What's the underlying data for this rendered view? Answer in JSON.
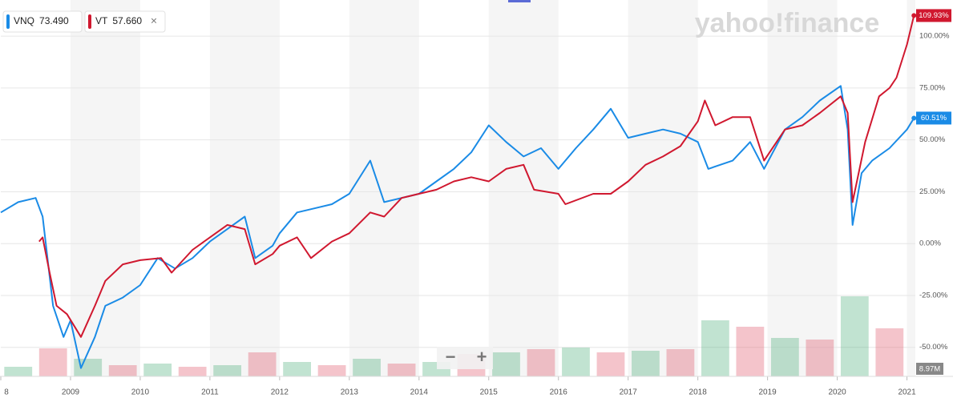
{
  "chart_data": {
    "type": "line",
    "logo": "yahoo!finance",
    "zoom_out": "−",
    "zoom_in": "+",
    "close": "×",
    "xlim": [
      2008.0,
      2021.12
    ],
    "xticks": [
      {
        "value": 2008,
        "label": "8"
      },
      2009,
      2010,
      2011,
      2012,
      2013,
      2014,
      2015,
      2016,
      2017,
      2018,
      2019,
      2020,
      2021
    ],
    "ylim": [
      -64,
      115.5
    ],
    "yticks": [
      {
        "value": -50,
        "label": "-50.00%"
      },
      {
        "value": -25,
        "label": "-25.00%"
      },
      {
        "value": 0,
        "label": "0.00%"
      },
      {
        "value": 25,
        "label": "25.00%"
      },
      {
        "value": 50,
        "label": "50.00%"
      },
      {
        "value": 75,
        "label": "75.00%"
      },
      {
        "value": 100,
        "label": "100.00%"
      }
    ],
    "grid": true,
    "series": [
      {
        "name": "VNQ",
        "color": "#1a8be6",
        "quote": {
          "value": 73.49,
          "label": "73.490"
        },
        "x": [
          2008.0,
          2008.25,
          2008.5,
          2008.6,
          2008.75,
          2008.9,
          2009.0,
          2009.15,
          2009.35,
          2009.5,
          2009.75,
          2010.0,
          2010.25,
          2010.5,
          2010.75,
          2011.0,
          2011.25,
          2011.5,
          2011.65,
          2011.9,
          2012.0,
          2012.25,
          2012.5,
          2012.75,
          2013.0,
          2013.3,
          2013.5,
          2013.75,
          2014.0,
          2014.25,
          2014.5,
          2014.75,
          2015.0,
          2015.25,
          2015.5,
          2015.75,
          2016.0,
          2016.25,
          2016.5,
          2016.75,
          2017.0,
          2017.25,
          2017.5,
          2017.75,
          2018.0,
          2018.15,
          2018.5,
          2018.75,
          2018.95,
          2019.25,
          2019.5,
          2019.75,
          2020.05,
          2020.15,
          2020.22,
          2020.35,
          2020.5,
          2020.75,
          2021.0,
          2021.1
        ],
        "values": [
          15,
          20,
          22,
          13,
          -30,
          -45,
          -37,
          -60,
          -45,
          -30,
          -26,
          -20,
          -7,
          -12,
          -7,
          1,
          7,
          13,
          -7,
          -1,
          5,
          15,
          17,
          19,
          24,
          40,
          20,
          22,
          24,
          30,
          36,
          44,
          57,
          49,
          42,
          46,
          36,
          46,
          55,
          65,
          51,
          53,
          55,
          53,
          49,
          36,
          40,
          49,
          36,
          55,
          61,
          69,
          76,
          55,
          9,
          34,
          40,
          46,
          55,
          60.51
        ],
        "end_label": "60.51%"
      },
      {
        "name": "VT",
        "color": "#d0182f",
        "quote": {
          "value": 57.66,
          "label": "57.660"
        },
        "x": [
          2008.55,
          2008.6,
          2008.7,
          2008.8,
          2008.95,
          2009.15,
          2009.35,
          2009.5,
          2009.75,
          2010.0,
          2010.3,
          2010.45,
          2010.75,
          2011.0,
          2011.25,
          2011.5,
          2011.65,
          2011.9,
          2012.0,
          2012.25,
          2012.45,
          2012.75,
          2013.0,
          2013.3,
          2013.5,
          2013.75,
          2014.0,
          2014.25,
          2014.5,
          2014.75,
          2015.0,
          2015.25,
          2015.5,
          2015.65,
          2016.0,
          2016.1,
          2016.5,
          2016.75,
          2017.0,
          2017.25,
          2017.5,
          2017.75,
          2018.0,
          2018.1,
          2018.25,
          2018.5,
          2018.75,
          2018.95,
          2019.25,
          2019.5,
          2019.75,
          2020.05,
          2020.15,
          2020.22,
          2020.4,
          2020.6,
          2020.75,
          2020.85,
          2021.0,
          2021.1
        ],
        "values": [
          1,
          3,
          -14,
          -30,
          -34,
          -45,
          -30,
          -18,
          -10,
          -8,
          -7,
          -14,
          -3,
          3,
          9,
          7,
          -10,
          -5,
          -1,
          3,
          -7,
          1,
          5,
          15,
          13,
          22,
          24,
          26,
          30,
          32,
          30,
          36,
          38,
          26,
          24,
          19,
          24,
          24,
          30,
          38,
          42,
          47,
          59,
          69,
          57,
          61,
          61,
          40,
          55,
          57,
          63,
          71,
          63,
          20,
          49,
          71,
          75,
          80,
          96,
          109.93
        ],
        "end_label": "109.93%"
      }
    ],
    "volume": {
      "color_up": "#4caf7a",
      "color_down": "#e0566a",
      "vlim": [
        0,
        100
      ],
      "last_label": "8.97M",
      "x": [
        2008.25,
        2008.75,
        2009.25,
        2009.75,
        2010.25,
        2010.75,
        2011.25,
        2011.75,
        2012.25,
        2012.75,
        2013.25,
        2013.75,
        2014.25,
        2014.75,
        2015.25,
        2015.75,
        2016.25,
        2016.75,
        2017.25,
        2017.75,
        2018.25,
        2018.75,
        2019.25,
        2019.75,
        2020.25,
        2020.75
      ],
      "values": [
        12,
        35,
        22,
        14,
        16,
        12,
        14,
        30,
        18,
        14,
        22,
        16,
        18,
        28,
        30,
        34,
        36,
        30,
        32,
        34,
        70,
        62,
        48,
        46,
        100,
        60
      ]
    }
  }
}
